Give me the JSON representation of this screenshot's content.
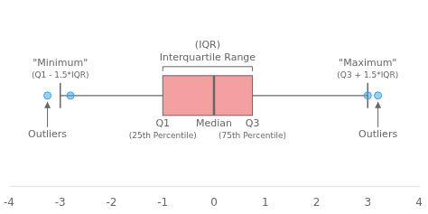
{
  "chart_data": {
    "type": "box",
    "orientation": "horizontal",
    "box": {
      "q1": -1,
      "median": 0,
      "q3": 0.75,
      "whisker_low": -3,
      "whisker_high": 3,
      "outliers": [
        -3.25,
        -2.8,
        3.0,
        3.2
      ]
    },
    "color": "#f5a0a0",
    "labels": {
      "iqr": [
        "Interquartile Range",
        "(IQR)"
      ],
      "q1": [
        "Q1",
        "(25th Percentile)"
      ],
      "median": [
        "Median"
      ],
      "q3": [
        "Q3",
        "(75th Percentile)"
      ],
      "whisker_low": [
        "\"Minimum\"",
        "(Q1 - 1.5*IQR)"
      ],
      "whisker_high": [
        "\"Maximum\"",
        "(Q3 + 1.5*IQR)"
      ],
      "outliers": [
        "Outliers",
        "Outliers"
      ]
    },
    "xlim": [
      -4,
      4
    ],
    "xticks": [
      -4,
      -3,
      -2,
      -1,
      0,
      1,
      2,
      3,
      4
    ],
    "tick_labels": "x",
    "grid": false
  }
}
